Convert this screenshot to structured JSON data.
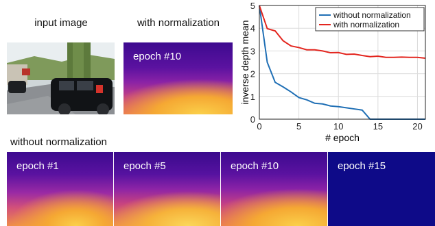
{
  "labels": {
    "input_image": "input image",
    "with_norm": "with normalization",
    "without_norm": "without normalization"
  },
  "panels": {
    "with_norm_epoch": "epoch #10",
    "bottom": [
      "epoch #1",
      "epoch #5",
      "epoch #10",
      "epoch #15"
    ]
  },
  "chart_data": {
    "type": "line",
    "xlabel": "# epoch",
    "ylabel": "inverse depth mean",
    "xlim": [
      0,
      21
    ],
    "ylim": [
      0,
      5
    ],
    "xticks": [
      0,
      5,
      10,
      15,
      20
    ],
    "yticks": [
      0,
      1,
      2,
      3,
      4,
      5
    ],
    "grid": true,
    "legend": "top-right",
    "series": [
      {
        "name": "without normalization",
        "color": "#1f6fb5",
        "x": [
          0,
          1,
          2,
          3,
          4,
          5,
          6,
          7,
          8,
          9,
          10,
          11,
          12,
          13,
          14,
          15,
          16,
          17,
          18,
          19,
          20,
          21
        ],
        "y": [
          5.0,
          2.5,
          1.62,
          1.42,
          1.2,
          0.95,
          0.85,
          0.7,
          0.67,
          0.58,
          0.55,
          0.5,
          0.45,
          0.4,
          0.0,
          0.0,
          0.0,
          0.0,
          0.0,
          0.0,
          0.0,
          0.0
        ]
      },
      {
        "name": "with normalization",
        "color": "#e3261f",
        "x": [
          0,
          1,
          2,
          3,
          4,
          5,
          6,
          7,
          8,
          9,
          10,
          11,
          12,
          13,
          14,
          15,
          16,
          17,
          18,
          19,
          20,
          21
        ],
        "y": [
          5.0,
          3.98,
          3.88,
          3.45,
          3.22,
          3.15,
          3.05,
          3.05,
          3.0,
          2.92,
          2.93,
          2.85,
          2.86,
          2.8,
          2.75,
          2.77,
          2.72,
          2.72,
          2.73,
          2.72,
          2.72,
          2.68
        ]
      }
    ]
  }
}
